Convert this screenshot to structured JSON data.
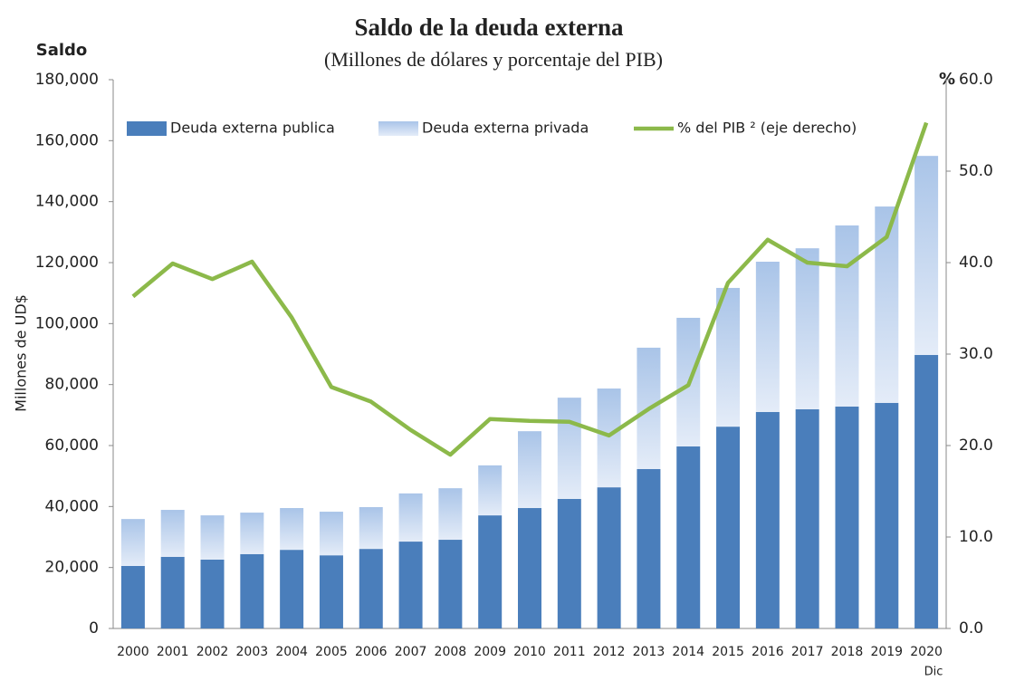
{
  "chart_data": {
    "type": "bar",
    "title": "Saldo de la deuda externa",
    "subtitle": "(Millones de dólares y porcentaje del PIB)",
    "y_title": "Saldo",
    "y_label": "Millones de UD$",
    "y2_title": "%",
    "categories": [
      "2000",
      "2001",
      "2002",
      "2003",
      "2004",
      "2005",
      "2006",
      "2007",
      "2008",
      "2009",
      "2010",
      "2011",
      "2012",
      "2013",
      "2014",
      "2015",
      "2016",
      "2017",
      "2018",
      "2019",
      "2020"
    ],
    "annotation": "Dic",
    "series": [
      {
        "name": "Deuda externa publica",
        "type": "bar",
        "color": "#4a7ebb",
        "values": [
          20500,
          23500,
          22600,
          24400,
          25800,
          24000,
          26100,
          28500,
          29100,
          37100,
          39500,
          42500,
          46300,
          52300,
          59700,
          66200,
          71000,
          71900,
          72800,
          74000,
          89700
        ]
      },
      {
        "name": "Deuda externa privada",
        "type": "bar",
        "color": "#a9c4e8",
        "values": [
          15400,
          15400,
          14500,
          13600,
          13700,
          14300,
          13700,
          15800,
          16900,
          16400,
          25200,
          33200,
          32400,
          39800,
          42200,
          45500,
          49300,
          52800,
          59400,
          64400,
          65300
        ]
      },
      {
        "name": "% del PIB ² (eje derecho)",
        "type": "line",
        "axis": "y2",
        "color": "#8cb94a",
        "values": [
          36.3,
          39.9,
          38.2,
          40.1,
          34.0,
          26.4,
          24.8,
          21.7,
          19.0,
          22.9,
          22.7,
          22.6,
          21.1,
          24.0,
          26.6,
          37.8,
          42.5,
          40.0,
          39.6,
          42.8,
          55.3
        ]
      }
    ],
    "stacked": true,
    "ylim": [
      0,
      180000
    ],
    "yticks": [
      0,
      {
        "value": 20000,
        "label": "20,000"
      },
      {
        "value": 40000,
        "label": "40,000"
      },
      {
        "value": 60000,
        "label": "60,000"
      },
      {
        "value": 80000,
        "label": "80,000"
      },
      {
        "value": 100000,
        "label": "100,000"
      },
      {
        "value": 120000,
        "label": "120,000"
      },
      {
        "value": 140000,
        "label": "140,000"
      },
      {
        "value": 160000,
        "label": "160,000"
      },
      {
        "value": 180000,
        "label": "180,000"
      }
    ],
    "y2lim": [
      0,
      60
    ],
    "y2ticks": [
      {
        "value": 0,
        "label": "0.0"
      },
      {
        "value": 10,
        "label": "10.0"
      },
      {
        "value": 20,
        "label": "20.0"
      },
      {
        "value": 30,
        "label": "30.0"
      },
      {
        "value": 40,
        "label": "40.0"
      },
      {
        "value": 50,
        "label": "50.0"
      },
      {
        "value": 60,
        "label": "60.0"
      }
    ],
    "grid": false,
    "legend": "top"
  }
}
